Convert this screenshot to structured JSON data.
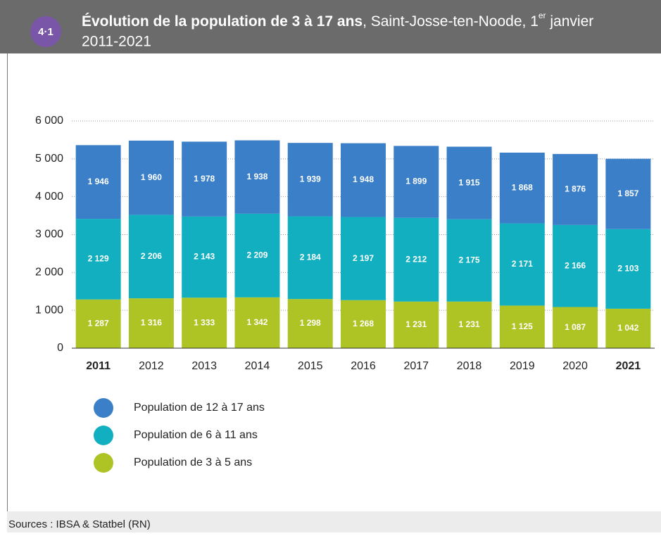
{
  "badge": "4·1",
  "chart_data": {
    "type": "stacked-bar",
    "title": [
      "Évolution de la population de 3 à 17 ans",
      ", Saint-Josse-ten-Noode, 1",
      "er",
      " janvier",
      "2011-2021"
    ],
    "categories": [
      "2011",
      "2012",
      "2013",
      "2014",
      "2015",
      "2016",
      "2017",
      "2018",
      "2019",
      "2020",
      "2021"
    ],
    "series": [
      {
        "name": "Population de 3 à 5 ans",
        "color": "#aec425",
        "values": [
          1287,
          1316,
          1333,
          1342,
          1298,
          1268,
          1231,
          1231,
          1125,
          1087,
          1042
        ],
        "value_labels": [
          "1 287",
          "1 316",
          "1 333",
          "1 342",
          "1 298",
          "1 268",
          "1 231",
          "1 231",
          "1 125",
          "1 087",
          "1 042"
        ]
      },
      {
        "name": "Population de 6 à 11 ans",
        "color": "#12afc0",
        "values": [
          2129,
          2206,
          2143,
          2209,
          2184,
          2197,
          2212,
          2175,
          2171,
          2166,
          2103
        ],
        "value_labels": [
          "2 129",
          "2 206",
          "2 143",
          "2 209",
          "2 184",
          "2 197",
          "2 212",
          "2 175",
          "2 171",
          "2 166",
          "2 103"
        ]
      },
      {
        "name": "Population de 12 à 17 ans",
        "color": "#3a7fc8",
        "values": [
          1946,
          1960,
          1978,
          1938,
          1939,
          1948,
          1899,
          1915,
          1868,
          1876,
          1857
        ],
        "value_labels": [
          "1 946",
          "1 960",
          "1 978",
          "1 938",
          "1 939",
          "1 948",
          "1 899",
          "1 915",
          "1 868",
          "1 876",
          "1 857"
        ]
      }
    ],
    "ylim": [
      0,
      6000
    ],
    "yticks": [
      0,
      {
        "value": 1000,
        "label": "1 000"
      },
      {
        "value": 2000,
        "label": "2 000"
      },
      {
        "value": 3000,
        "label": "3 000"
      },
      {
        "value": 4000,
        "label": "4 000"
      },
      {
        "value": 5000,
        "label": "5 000"
      },
      {
        "value": 6000,
        "label": "6 000"
      }
    ],
    "grid": true
  },
  "source": "Sources : IBSA & Statbel (RN)"
}
